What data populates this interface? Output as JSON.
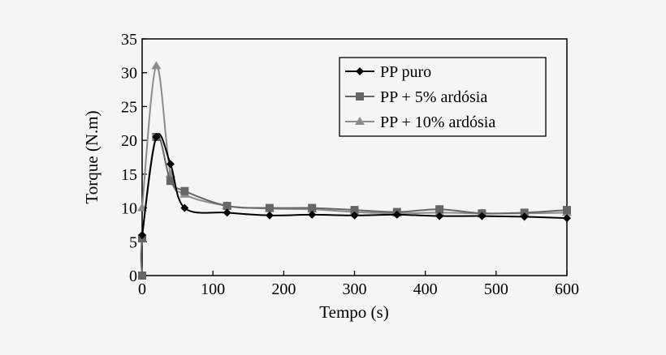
{
  "chart_data": {
    "type": "line",
    "title": "",
    "xlabel": "Tempo (s)",
    "ylabel": "Torque (N.m)",
    "xlim": [
      0,
      600
    ],
    "ylim": [
      0,
      35
    ],
    "xticks": [
      0,
      100,
      200,
      300,
      400,
      500,
      600
    ],
    "yticks": [
      0,
      5,
      10,
      15,
      20,
      25,
      30,
      35
    ],
    "grid": false,
    "legend_position": "top-right",
    "series": [
      {
        "name": "PP puro",
        "marker": "diamond",
        "color": "#000000",
        "x": [
          0,
          20,
          40,
          60,
          120,
          180,
          240,
          300,
          360,
          420,
          480,
          540,
          600
        ],
        "y": [
          6,
          20.5,
          16.5,
          10,
          9.3,
          8.9,
          9.0,
          8.9,
          9.0,
          8.8,
          8.8,
          8.7,
          8.5
        ]
      },
      {
        "name": "PP + 5% ardósia",
        "marker": "square",
        "color": "#666666",
        "x": [
          0,
          0,
          20,
          40,
          60,
          120,
          180,
          240,
          300,
          360,
          420,
          480,
          540,
          600
        ],
        "y": [
          0,
          5.5,
          20.5,
          14,
          12.5,
          10.3,
          10,
          10,
          9.7,
          9.4,
          9.8,
          9.2,
          9.3,
          9.7
        ]
      },
      {
        "name": "PP + 10% ardósia",
        "marker": "triangle",
        "color": "#8c8c8c",
        "x": [
          0,
          20,
          40,
          60,
          120,
          180,
          240,
          300,
          360,
          420,
          480,
          540,
          600
        ],
        "y": [
          10,
          31,
          15,
          12,
          10.3,
          9.9,
          9.8,
          9.4,
          9.2,
          9.3,
          9.2,
          9.2,
          9.3
        ]
      }
    ]
  }
}
